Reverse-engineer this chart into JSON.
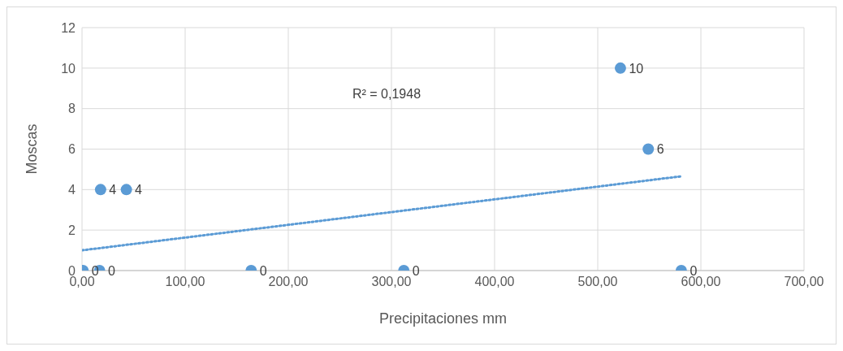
{
  "chart_data": {
    "type": "scatter",
    "xlabel": "Precipitaciones mm",
    "ylabel": "Moscas",
    "xlim": [
      0,
      700
    ],
    "xticks": [
      {
        "value": 0,
        "label": "0,00"
      },
      {
        "value": 100,
        "label": "100,00"
      },
      {
        "value": 200,
        "label": "200,00"
      },
      {
        "value": 300,
        "label": "300,00"
      },
      {
        "value": 400,
        "label": "400,00"
      },
      {
        "value": 500,
        "label": "500,00"
      },
      {
        "value": 600,
        "label": "600,00"
      },
      {
        "value": 700,
        "label": "700,00"
      }
    ],
    "ylim": [
      0,
      12
    ],
    "yticks": [
      0,
      2,
      4,
      6,
      8,
      10,
      12
    ],
    "grid": true,
    "marker": "circle",
    "annotations": [
      "R² = 0,1948"
    ],
    "series": [
      {
        "color": "#5b9bd5",
        "x": [
          1,
          17,
          18,
          43,
          164,
          312,
          522,
          549,
          581
        ],
        "values": [
          0,
          0,
          4,
          4,
          0,
          0,
          10,
          6,
          0
        ],
        "value_labels": [
          "0",
          "0",
          "4",
          "4",
          "0",
          "0",
          "10",
          "6",
          "0"
        ]
      },
      {
        "type": "line",
        "color": "#5b9bd5",
        "line_style": "dotted",
        "marker": "none",
        "x": [
          0,
          580
        ],
        "values": [
          1.0,
          4.65
        ]
      }
    ]
  }
}
